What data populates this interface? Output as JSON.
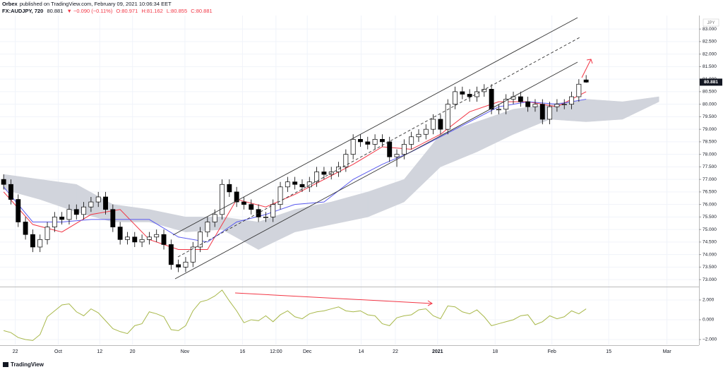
{
  "header": {
    "publisher": "Orbex",
    "published": "published on TradingView.com, February 09, 2021 10:06:34 EET",
    "symbol": "FX:AUDJPY, 720",
    "last": "80.881",
    "change": "▼ −0.090 (−0.11%)",
    "ohlc": [
      "O:80.971",
      "H:81.162",
      "L:80.855",
      "C:80.881"
    ]
  },
  "footer": "TradingView",
  "chart_data": [
    {
      "type": "candlestick",
      "axis_unit": "JPY",
      "up_color": "#ffffff",
      "down_color": "#000000",
      "xlim": [
        -0.5,
        95.5
      ],
      "ylim": [
        72.75,
        83.54
      ],
      "yticks": [
        {
          "value": 73,
          "label": "73.000"
        },
        {
          "value": 73.5,
          "label": "73.500"
        },
        {
          "value": 74,
          "label": "74.000"
        },
        {
          "value": 74.5,
          "label": "74.500"
        },
        {
          "value": 75,
          "label": "75.000"
        },
        {
          "value": 75.5,
          "label": "75.500"
        },
        {
          "value": 76,
          "label": "76.000"
        },
        {
          "value": 76.5,
          "label": "76.500"
        },
        {
          "value": 77,
          "label": "77.000"
        },
        {
          "value": 77.5,
          "label": "77.500"
        },
        {
          "value": 78,
          "label": "78.000"
        },
        {
          "value": 78.5,
          "label": "78.500"
        },
        {
          "value": 79,
          "label": "79.000"
        },
        {
          "value": 79.5,
          "label": "79.500"
        },
        {
          "value": 80,
          "label": "80.000"
        },
        {
          "value": 80.5,
          "label": "80.500"
        },
        {
          "value": 81,
          "label": "81.000"
        },
        {
          "value": 81.5,
          "label": "81.500"
        },
        {
          "value": 82,
          "label": "82.000"
        },
        {
          "value": 82.5,
          "label": "82.500"
        },
        {
          "value": 83,
          "label": "83.000"
        }
      ],
      "grid": true,
      "x": [
        0,
        1,
        2,
        3,
        4,
        5,
        6,
        7,
        8,
        9,
        10,
        11,
        12,
        13,
        14,
        15,
        16,
        17,
        18,
        19,
        20,
        21,
        22,
        23,
        24,
        25,
        26,
        27,
        28,
        29,
        30,
        31,
        32,
        33,
        34,
        35,
        36,
        37,
        38,
        39,
        40,
        41,
        42,
        43,
        44,
        45,
        46,
        47,
        48,
        49,
        50,
        51,
        52,
        53,
        54,
        55,
        56,
        57,
        58,
        59,
        60,
        61,
        62,
        63,
        64,
        65,
        66,
        67,
        68,
        69,
        70,
        71,
        72,
        73,
        74,
        75,
        76,
        77,
        78,
        79,
        80
      ],
      "open": [
        77.0,
        76.8,
        76.2,
        75.3,
        74.8,
        74.3,
        74.6,
        75.1,
        75.5,
        75.4,
        75.8,
        75.6,
        75.9,
        76.1,
        76.3,
        75.8,
        75.1,
        74.6,
        74.7,
        74.5,
        74.6,
        74.7,
        74.8,
        74.4,
        73.6,
        73.5,
        73.7,
        74.3,
        74.9,
        75.3,
        75.6,
        76.8,
        76.5,
        76.1,
        76.0,
        75.8,
        75.5,
        75.5,
        76.0,
        76.7,
        76.9,
        76.8,
        76.7,
        76.9,
        77.3,
        77.2,
        77.3,
        77.5,
        78.0,
        78.6,
        78.5,
        78.4,
        78.6,
        78.5,
        77.9,
        78.0,
        78.4,
        78.7,
        78.8,
        79.0,
        79.4,
        79.0,
        80.0,
        80.5,
        80.4,
        80.3,
        80.5,
        80.6,
        79.8,
        79.8,
        80.2,
        80.3,
        80.1,
        79.9,
        80.0,
        79.4,
        79.9,
        80.0,
        80.0,
        80.3,
        80.971
      ],
      "high": [
        77.2,
        77.0,
        76.4,
        75.5,
        75.0,
        74.8,
        75.3,
        75.7,
        75.7,
        76.0,
        76.0,
        76.1,
        76.3,
        76.5,
        76.5,
        76.0,
        75.3,
        74.9,
        74.9,
        74.8,
        74.9,
        75.0,
        75.0,
        74.6,
        73.8,
        73.9,
        74.5,
        75.1,
        75.5,
        75.8,
        77.0,
        77.0,
        76.7,
        76.3,
        76.2,
        76.0,
        75.7,
        76.2,
        76.9,
        77.1,
        77.1,
        77.0,
        77.1,
        77.5,
        77.5,
        77.5,
        77.7,
        78.2,
        78.8,
        78.8,
        78.7,
        78.8,
        78.8,
        78.7,
        78.2,
        78.6,
        78.9,
        79.0,
        79.2,
        79.6,
        79.6,
        80.2,
        80.7,
        80.7,
        80.6,
        80.7,
        80.8,
        80.8,
        80.0,
        80.4,
        80.5,
        80.5,
        80.3,
        80.2,
        80.2,
        80.1,
        80.2,
        80.2,
        80.5,
        81.0,
        81.162
      ],
      "low": [
        76.6,
        76.0,
        75.1,
        74.6,
        74.1,
        74.1,
        74.4,
        74.9,
        75.2,
        75.2,
        75.4,
        75.4,
        75.7,
        75.9,
        75.6,
        74.9,
        74.4,
        74.4,
        74.3,
        74.3,
        74.4,
        74.5,
        74.2,
        73.4,
        73.3,
        73.3,
        73.5,
        74.1,
        74.7,
        75.1,
        75.4,
        76.3,
        75.9,
        75.8,
        75.6,
        75.3,
        75.3,
        75.3,
        75.8,
        76.5,
        76.6,
        76.5,
        76.5,
        76.7,
        77.0,
        77.0,
        77.1,
        77.3,
        77.8,
        78.3,
        78.2,
        78.2,
        78.3,
        77.7,
        77.5,
        77.8,
        78.2,
        78.5,
        78.6,
        78.8,
        78.8,
        78.8,
        79.8,
        80.2,
        80.1,
        80.1,
        80.3,
        79.6,
        79.6,
        79.6,
        80.0,
        79.9,
        79.7,
        79.7,
        79.2,
        79.2,
        79.7,
        79.8,
        79.8,
        80.1,
        80.855
      ],
      "close": [
        76.8,
        76.2,
        75.3,
        74.8,
        74.3,
        74.6,
        75.1,
        75.5,
        75.4,
        75.8,
        75.6,
        75.9,
        76.1,
        76.3,
        75.8,
        75.1,
        74.6,
        74.7,
        74.5,
        74.6,
        74.7,
        74.8,
        74.4,
        73.6,
        73.5,
        73.7,
        74.3,
        74.9,
        75.3,
        75.6,
        76.8,
        76.5,
        76.1,
        76.0,
        75.8,
        75.5,
        75.5,
        76.0,
        76.7,
        76.9,
        76.8,
        76.7,
        76.9,
        77.3,
        77.2,
        77.3,
        77.5,
        78.0,
        78.6,
        78.5,
        78.4,
        78.6,
        78.5,
        77.9,
        78.0,
        78.4,
        78.7,
        78.8,
        79.0,
        79.4,
        79.0,
        80.0,
        80.5,
        80.4,
        80.3,
        80.5,
        80.6,
        79.8,
        79.8,
        80.2,
        80.3,
        80.1,
        79.9,
        80.0,
        79.4,
        79.9,
        80.0,
        80.0,
        80.3,
        80.8,
        80.881
      ],
      "cloud": {
        "color": "#d1d4dc",
        "x": [
          0,
          5,
          10,
          15,
          20,
          25,
          30,
          35,
          40,
          45,
          50,
          55,
          60,
          65,
          70,
          75,
          80,
          85,
          90
        ],
        "upper": [
          77.2,
          77.0,
          76.8,
          76.0,
          75.8,
          75.5,
          75.5,
          75.3,
          75.8,
          76.1,
          76.5,
          77.0,
          78.8,
          79.3,
          79.8,
          80.0,
          80.2,
          80.1,
          80.3
        ],
        "lower": [
          76.6,
          76.2,
          75.7,
          75.3,
          75.3,
          74.9,
          75.0,
          74.2,
          74.9,
          75.2,
          75.5,
          76.1,
          77.5,
          78.1,
          78.8,
          79.4,
          79.3,
          79.4,
          80.1
        ]
      },
      "lines": [
        {
          "color": "#f23645",
          "x": [
            0,
            4,
            8,
            12,
            16,
            20,
            24,
            28,
            32,
            36,
            40,
            44,
            48,
            52,
            56,
            60,
            64,
            68,
            72,
            76,
            80
          ],
          "values": [
            76.5,
            75.2,
            74.9,
            75.6,
            75.8,
            74.6,
            74.2,
            74.2,
            76.2,
            75.9,
            76.4,
            77.0,
            77.6,
            78.3,
            78.2,
            78.8,
            79.7,
            80.1,
            80.1,
            79.9,
            80.5
          ]
        },
        {
          "color": "#5b5bf0",
          "x": [
            0,
            4,
            8,
            12,
            16,
            20,
            24,
            28,
            32,
            36,
            40,
            44,
            48,
            52,
            56,
            60,
            64,
            68,
            72,
            76,
            80
          ],
          "values": [
            76.7,
            75.3,
            75.3,
            75.4,
            75.4,
            75.4,
            74.7,
            74.5,
            75.3,
            75.6,
            76.0,
            76.1,
            77.0,
            77.6,
            78.1,
            78.7,
            79.3,
            79.9,
            80.1,
            80.0,
            80.2
          ]
        }
      ]
    },
    {
      "type": "line",
      "color": "#a8b84a",
      "xlim": [
        -0.5,
        95.5
      ],
      "ylim": [
        -2.5,
        3.21
      ],
      "yticks": [
        {
          "value": 2,
          "label": "2.000"
        },
        {
          "value": 0,
          "label": "0.000"
        },
        {
          "value": -2,
          "label": "−2.000"
        }
      ],
      "xticks": [
        {
          "value": 1.6,
          "label": "22"
        },
        {
          "value": 7.5,
          "label": "Oct"
        },
        {
          "value": 13.2,
          "label": "12"
        },
        {
          "value": 17.7,
          "label": "20"
        },
        {
          "value": 24.9,
          "label": "Nov"
        },
        {
          "value": 32.8,
          "label": "16"
        },
        {
          "value": 37.4,
          "label": "12:00"
        },
        {
          "value": 41.7,
          "label": "Dec"
        },
        {
          "value": 49.1,
          "label": "14"
        },
        {
          "value": 53.8,
          "label": "22"
        },
        {
          "value": 59.6,
          "label": "2021"
        },
        {
          "value": 67.5,
          "label": "18"
        },
        {
          "value": 75.3,
          "label": "Feb"
        },
        {
          "value": 83.1,
          "label": "15"
        },
        {
          "value": 91.1,
          "label": "Mar"
        }
      ],
      "grid": true,
      "x": [
        0,
        1,
        2,
        3,
        4,
        5,
        6,
        7,
        8,
        9,
        10,
        11,
        12,
        13,
        14,
        15,
        16,
        17,
        18,
        19,
        20,
        21,
        22,
        23,
        24,
        25,
        26,
        27,
        28,
        29,
        30,
        31,
        32,
        33,
        34,
        35,
        36,
        37,
        38,
        39,
        40,
        41,
        42,
        43,
        44,
        45,
        46,
        47,
        48,
        49,
        50,
        51,
        52,
        53,
        54,
        55,
        56,
        57,
        58,
        59,
        60,
        61,
        62,
        63,
        64,
        65,
        66,
        67,
        68,
        69,
        70,
        71,
        72,
        73,
        74,
        75,
        76,
        77,
        78,
        79,
        80
      ],
      "values": [
        -1.1,
        -1.3,
        -1.8,
        -2.0,
        -2.1,
        -1.5,
        0.3,
        0.9,
        1.5,
        1.6,
        0.8,
        0.4,
        1.1,
        0.7,
        -0.1,
        -0.9,
        -1.2,
        -1.4,
        -0.6,
        -0.4,
        0.8,
        0.6,
        0.3,
        -1.0,
        -1.1,
        -0.6,
        0.9,
        1.8,
        2.0,
        2.4,
        3.0,
        1.9,
        0.9,
        -0.3,
        0.0,
        -0.1,
        0.4,
        -0.2,
        0.5,
        0.9,
        0.3,
        0.1,
        0.6,
        0.8,
        0.9,
        1.1,
        1.3,
        0.9,
        0.8,
        0.9,
        0.5,
        0.4,
        -0.4,
        -0.6,
        0.2,
        0.4,
        0.5,
        1.0,
        1.1,
        0.4,
        0.1,
        1.4,
        1.3,
        0.8,
        0.6,
        1.0,
        0.3,
        -0.6,
        -0.4,
        -0.2,
        0.0,
        0.4,
        0.5,
        -0.5,
        -0.2,
        0.4,
        0.1,
        0.3,
        0.9,
        0.6,
        1.1
      ]
    }
  ]
}
